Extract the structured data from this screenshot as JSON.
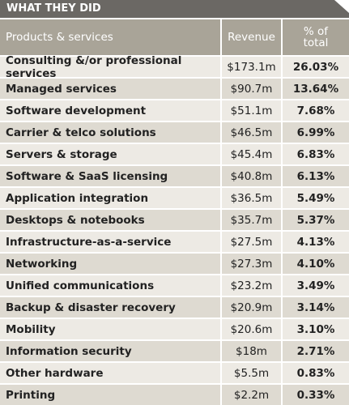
{
  "header": {
    "title": "WHAT THEY DID"
  },
  "table": {
    "columns": [
      "Products & services",
      "Revenue",
      "% of total"
    ],
    "rows": [
      [
        "Consulting &/or professional services",
        "$173.1m",
        "26.03%"
      ],
      [
        "Managed services",
        "$90.7m",
        "13.64%"
      ],
      [
        "Software development",
        "$51.1m",
        "7.68%"
      ],
      [
        "Carrier & telco solutions",
        "$46.5m",
        "6.99%"
      ],
      [
        "Servers & storage",
        "$45.4m",
        "6.83%"
      ],
      [
        "Software & SaaS licensing",
        "$40.8m",
        "6.13%"
      ],
      [
        "Application integration",
        "$36.5m",
        "5.49%"
      ],
      [
        "Desktops & notebooks",
        "$35.7m",
        "5.37%"
      ],
      [
        "Infrastructure-as-a-service",
        "$27.5m",
        "4.13%"
      ],
      [
        "Networking",
        "$27.3m",
        "4.10%"
      ],
      [
        "Unified communications",
        "$23.2m",
        "3.49%"
      ],
      [
        "Backup & disaster recovery",
        "$20.9m",
        "3.14%"
      ],
      [
        "Mobility",
        "$20.6m",
        "3.10%"
      ],
      [
        "Information security",
        "$18m",
        "2.71%"
      ],
      [
        "Other hardware",
        "$5.5m",
        "0.83%"
      ],
      [
        "Printing",
        "$2.2m",
        "0.33%"
      ]
    ]
  }
}
